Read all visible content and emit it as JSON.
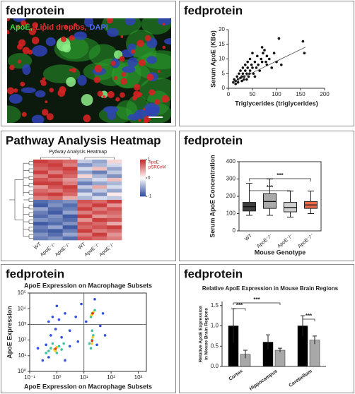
{
  "chart_data": [
    {
      "type": "image",
      "heading": "fedprotein",
      "legend": [
        {
          "text": "ApoE,",
          "color": "#3fd43f"
        },
        {
          "text": "Lipid droplos,",
          "color": "#e03030"
        },
        {
          "text": "DAPI",
          "color": "#4f6cff"
        }
      ]
    },
    {
      "type": "scatter",
      "heading": "fedprotein",
      "xlabel": "Triglycerides (triglycerides)",
      "ylabel": "Serum ApoE (KBo)",
      "color": "#111111",
      "x": [
        10,
        12,
        15,
        18,
        20,
        22,
        25,
        25,
        28,
        30,
        30,
        32,
        35,
        35,
        38,
        40,
        40,
        42,
        45,
        45,
        48,
        50,
        50,
        52,
        55,
        58,
        60,
        62,
        65,
        68,
        70,
        70,
        72,
        75,
        78,
        80,
        80,
        85,
        90,
        95,
        100,
        105,
        110,
        155,
        158,
        15,
        20,
        28,
        33,
        38,
        44,
        55
      ],
      "values": [
        2,
        3,
        2.5,
        4,
        3,
        5,
        3.5,
        6,
        4,
        5,
        7,
        3,
        6,
        8,
        5,
        7,
        9,
        4,
        6,
        10,
        8,
        7,
        12,
        5,
        9,
        7,
        11,
        8,
        6,
        10,
        9,
        14,
        12,
        13,
        9,
        11,
        8,
        10,
        7,
        12,
        9,
        17,
        8,
        16,
        12,
        1.5,
        2,
        2.5,
        4,
        3,
        5,
        4
      ],
      "trend": {
        "x": [
          8,
          160
        ],
        "y": [
          2,
          14
        ]
      },
      "xlim": [
        0,
        200
      ],
      "xticks": [
        0,
        50,
        100,
        150,
        200
      ],
      "ylim": [
        0,
        20
      ],
      "yticks": [
        0,
        5,
        10,
        15,
        20
      ]
    },
    {
      "type": "heatmap",
      "heading": "Pathway Analysis Heatmap",
      "title": "Pytlway Analysis Heatmap",
      "columns": [
        "WT",
        "ApoE⁻/⁻",
        "ApoE⁻/⁻",
        "WT",
        "ApoE⁻/⁻",
        "ApoE⁻/⁻"
      ],
      "colorbar_label": [
        "ApoE⁻",
        "pSRCeM"
      ],
      "clim": [
        -1,
        1
      ],
      "cticks": [
        1,
        0,
        -1
      ],
      "colors": {
        "low": "#2c4a9a",
        "mid": "#ffffff",
        "high": "#c62828"
      },
      "values": [
        [
          0.9,
          0.8,
          0.7,
          -0.3,
          -0.5,
          0.2
        ],
        [
          0.8,
          0.9,
          0.6,
          -0.6,
          -0.4,
          -0.2
        ],
        [
          0.7,
          0.8,
          0.9,
          -0.2,
          0.3,
          -0.5
        ],
        [
          0.9,
          0.6,
          0.8,
          -0.5,
          -0.7,
          -0.3
        ],
        [
          0.6,
          0.9,
          0.7,
          0.2,
          -0.4,
          -0.6
        ],
        [
          0.8,
          0.7,
          0.5,
          -0.4,
          -0.2,
          0.3
        ],
        [
          0.9,
          0.9,
          0.6,
          -0.7,
          -0.5,
          -0.4
        ],
        [
          0.5,
          0.8,
          0.9,
          -0.3,
          0.4,
          -0.2
        ],
        [
          0.7,
          0.6,
          0.8,
          -0.6,
          -0.3,
          -0.5
        ],
        [
          0.8,
          0.9,
          0.7,
          -0.2,
          -0.6,
          0.1
        ],
        [
          0.6,
          0.7,
          0.4,
          -0.4,
          -0.2,
          -0.3
        ],
        [
          -0.8,
          -0.7,
          -0.6,
          0.8,
          0.7,
          0.9
        ],
        [
          -0.9,
          -0.6,
          -0.8,
          0.7,
          0.9,
          0.5
        ],
        [
          -0.5,
          -0.8,
          -0.7,
          0.9,
          0.6,
          0.8
        ],
        [
          -0.7,
          -0.9,
          -0.5,
          0.6,
          0.8,
          0.7
        ],
        [
          -0.8,
          -0.6,
          -0.9,
          0.9,
          0.5,
          0.6
        ],
        [
          -0.6,
          -0.7,
          -0.8,
          0.5,
          0.9,
          0.8
        ],
        [
          -0.9,
          -0.8,
          -0.6,
          0.8,
          0.7,
          0.4
        ],
        [
          -0.7,
          -0.5,
          -0.9,
          0.7,
          0.8,
          0.9
        ],
        [
          -0.8,
          -0.9,
          -0.7,
          0.9,
          0.6,
          0.7
        ],
        [
          -0.6,
          -0.8,
          -0.5,
          0.6,
          0.9,
          0.5
        ],
        [
          -0.7,
          -0.6,
          -0.8,
          0.8,
          0.7,
          0.6
        ]
      ]
    },
    {
      "type": "box",
      "heading": "fedprotein",
      "ylabel": "Serum ApoE Concentration",
      "xlabel": "Mouse Genotype",
      "categories": [
        "WT",
        "ApoE⁻/⁻",
        "ApoE⁻/⁻",
        "ApoE⁻/⁻"
      ],
      "colors": [
        "#3d3d3d",
        "#a9a9a9",
        "#cfcfcf",
        "#e8694a"
      ],
      "boxes": [
        {
          "min": 90,
          "q1": 115,
          "median": 140,
          "q3": 165,
          "max": 275
        },
        {
          "min": 90,
          "q1": 130,
          "median": 170,
          "q3": 215,
          "max": 300
        },
        {
          "min": 80,
          "q1": 110,
          "median": 135,
          "q3": 165,
          "max": 230
        },
        {
          "min": 100,
          "q1": 130,
          "median": 150,
          "q3": 170,
          "max": 230
        }
      ],
      "significance": [
        "***",
        "***"
      ],
      "ylim": [
        0,
        400
      ],
      "yticks": [
        0,
        100,
        200,
        300,
        400
      ]
    },
    {
      "type": "scatter",
      "heading": "fedprotein",
      "title": "ApoE Expression on Macrophage Subsets",
      "xlabel": "ApoE Expression on Macrophage Subsets",
      "ylabel": "ApoE Expression",
      "xlog": true,
      "ylog": true,
      "series": [
        {
          "color": "#3050e0",
          "x": [
            0.3,
            0.5,
            0.4,
            0.6,
            1.5,
            2,
            3,
            0.7,
            1.2,
            2,
            0.5,
            5,
            8,
            30,
            40,
            60,
            0.2,
            3,
            12,
            25,
            1,
            6,
            0.9,
            50
          ],
          "values": [
            5,
            8,
            50,
            200,
            150,
            5,
            40,
            3000,
            2000,
            5000,
            1500,
            3000,
            20000,
            50,
            800,
            200,
            30,
            400,
            1500,
            40000,
            15000,
            80,
            500,
            5000
          ]
        },
        {
          "color": "#3cc4a0",
          "x": [
            0.5,
            0.7,
            1,
            1.2,
            0.6,
            1.5,
            18,
            20,
            22,
            16,
            20,
            25,
            18,
            1.8,
            0.4,
            20
          ],
          "values": [
            20,
            60,
            15,
            40,
            30,
            25,
            30,
            100,
            200,
            60,
            5000,
            8000,
            3000,
            60,
            15,
            400
          ]
        },
        {
          "color": "#f2d020",
          "x": [
            0.8,
            1,
            0.9,
            20,
            21,
            22,
            19
          ],
          "values": [
            25,
            35,
            20,
            60,
            150,
            6000,
            4000
          ]
        },
        {
          "color": "#e03020",
          "x": [
            0.9,
            20,
            21
          ],
          "values": [
            28,
            90,
            5000
          ]
        }
      ],
      "gates": {
        "x": 10,
        "y": 1000
      },
      "xlim": [
        0.1,
        2000
      ],
      "xticks": [
        {
          "value": 0.1,
          "label": "10⁻¹"
        },
        {
          "value": 1,
          "label": "10⁰"
        },
        {
          "value": 10,
          "label": "10¹"
        },
        {
          "value": 100,
          "label": "10²"
        },
        {
          "value": 1000,
          "label": "10³"
        }
      ],
      "ylim": [
        1,
        100000
      ],
      "yticks": [
        {
          "value": 1,
          "label": "10⁰"
        },
        {
          "value": 10,
          "label": "10¹"
        },
        {
          "value": 100,
          "label": "10²"
        },
        {
          "value": 1000,
          "label": "10³"
        },
        {
          "value": 10000,
          "label": "10⁴"
        },
        {
          "value": 100000,
          "label": "10⁵"
        }
      ]
    },
    {
      "type": "bar",
      "heading": "fedprotein",
      "title": "Relative ApoE Expression in Mouse Brain Regions",
      "ylabel": [
        "Relative ApoE Expression",
        "in Mouse Brain Regions"
      ],
      "categories": [
        "Cortex",
        "Hippocampus",
        "Cerebellum"
      ],
      "series": [
        {
          "color": "#000000",
          "values": [
            1.0,
            0.6,
            1.0
          ],
          "errors": [
            0.42,
            0.18,
            0.25
          ]
        },
        {
          "color": "#a8a8a8",
          "values": [
            0.3,
            0.4,
            0.65
          ],
          "errors": [
            0.1,
            0.05,
            0.1
          ]
        }
      ],
      "significance": [
        "***",
        "***",
        "***"
      ],
      "ylim": [
        0,
        1.6
      ],
      "yticks": [
        {
          "value": 0,
          "label": "0.0"
        },
        {
          "value": 0.5,
          "label": "0.5"
        },
        {
          "value": 1,
          "label": "1.0"
        },
        {
          "value": 1.5,
          "label": "1.5"
        }
      ]
    }
  ]
}
